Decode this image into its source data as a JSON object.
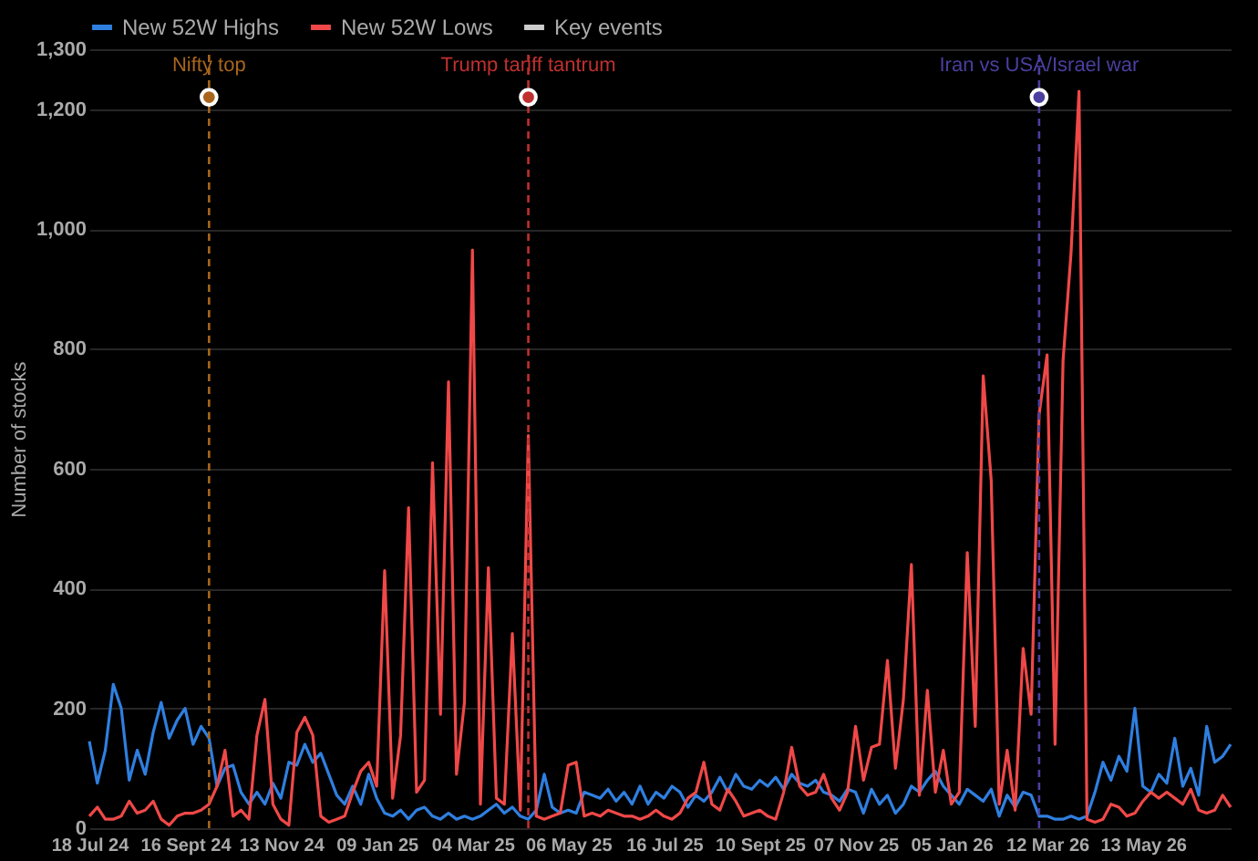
{
  "chart_data": {
    "type": "line",
    "ylabel": "Number of stocks",
    "categories": [
      "18 Jul 24",
      null,
      null,
      null,
      null,
      null,
      null,
      null,
      null,
      null,
      null,
      null,
      "16 Sept 24",
      null,
      null,
      null,
      null,
      null,
      null,
      null,
      null,
      null,
      null,
      null,
      "13 Nov 24",
      null,
      null,
      null,
      null,
      null,
      null,
      null,
      null,
      null,
      null,
      null,
      "09 Jan 25",
      null,
      null,
      null,
      null,
      null,
      null,
      null,
      null,
      null,
      null,
      null,
      "04 Mar 25",
      null,
      null,
      null,
      null,
      null,
      null,
      null,
      null,
      null,
      null,
      null,
      "06 May 25",
      null,
      null,
      null,
      null,
      null,
      null,
      null,
      null,
      null,
      null,
      null,
      "16 Jul 25",
      null,
      null,
      null,
      null,
      null,
      null,
      null,
      null,
      null,
      null,
      null,
      "10 Sept 25",
      null,
      null,
      null,
      null,
      null,
      null,
      null,
      null,
      null,
      null,
      null,
      "07 Nov 25",
      null,
      null,
      null,
      null,
      null,
      null,
      null,
      null,
      null,
      null,
      null,
      "05 Jan 26",
      null,
      null,
      null,
      null,
      null,
      null,
      null,
      null,
      null,
      null,
      null,
      "12 Mar 26",
      null,
      null,
      null,
      null,
      null,
      null,
      null,
      null,
      null,
      null,
      null,
      "13 May 26",
      null,
      null,
      null,
      null,
      null,
      null,
      null,
      null,
      null,
      null,
      null
    ],
    "series": [
      {
        "name": "New 52W Highs",
        "color": "#2f7fe0",
        "values": [
          145,
          75,
          130,
          240,
          200,
          80,
          130,
          90,
          160,
          210,
          150,
          180,
          200,
          140,
          170,
          150,
          70,
          100,
          105,
          60,
          40,
          60,
          40,
          75,
          50,
          110,
          105,
          140,
          110,
          125,
          90,
          55,
          40,
          70,
          40,
          90,
          50,
          25,
          20,
          30,
          15,
          30,
          35,
          20,
          15,
          25,
          15,
          20,
          15,
          20,
          30,
          40,
          25,
          35,
          20,
          15,
          30,
          90,
          35,
          25,
          30,
          25,
          60,
          55,
          50,
          65,
          45,
          60,
          40,
          70,
          40,
          60,
          50,
          70,
          60,
          35,
          55,
          45,
          60,
          85,
          60,
          90,
          70,
          65,
          80,
          70,
          85,
          65,
          90,
          75,
          70,
          80,
          60,
          55,
          45,
          65,
          60,
          25,
          65,
          40,
          55,
          25,
          40,
          70,
          60,
          80,
          95,
          70,
          55,
          40,
          65,
          55,
          45,
          65,
          20,
          55,
          35,
          60,
          55,
          20,
          20,
          15,
          15,
          20,
          15,
          20,
          60,
          110,
          80,
          120,
          95,
          200,
          70,
          60,
          90,
          75,
          150,
          70,
          100,
          55,
          170,
          110,
          120,
          140
        ]
      },
      {
        "name": "New 52W Lows",
        "color": "#f04848",
        "values": [
          20,
          35,
          15,
          15,
          20,
          45,
          25,
          30,
          45,
          15,
          5,
          20,
          25,
          25,
          30,
          40,
          70,
          130,
          20,
          30,
          15,
          155,
          215,
          40,
          15,
          5,
          160,
          185,
          155,
          20,
          10,
          15,
          20,
          60,
          95,
          110,
          70,
          430,
          50,
          155,
          535,
          60,
          80,
          610,
          190,
          745,
          90,
          210,
          965,
          40,
          435,
          50,
          40,
          325,
          30,
          655,
          20,
          15,
          20,
          25,
          105,
          110,
          20,
          25,
          20,
          30,
          25,
          20,
          20,
          15,
          20,
          30,
          20,
          15,
          25,
          50,
          60,
          110,
          40,
          30,
          65,
          45,
          20,
          25,
          30,
          20,
          15,
          60,
          135,
          70,
          55,
          60,
          90,
          50,
          30,
          60,
          170,
          80,
          135,
          140,
          280,
          100,
          215,
          440,
          55,
          230,
          60,
          130,
          40,
          60,
          460,
          170,
          755,
          580,
          40,
          130,
          30,
          300,
          190,
          690,
          790,
          140,
          780,
          960,
          1230,
          15,
          10,
          15,
          40,
          35,
          20,
          25,
          45,
          60,
          50,
          60,
          50,
          40,
          65,
          30,
          25,
          30,
          55,
          35
        ]
      },
      {
        "name": "Key events",
        "type": "scatter",
        "marker": "circle",
        "color": "#cccccc",
        "values": [
          null,
          null,
          null,
          null,
          null,
          null,
          null,
          null,
          null,
          null,
          null,
          null,
          null,
          null,
          null,
          1220,
          null,
          null,
          null,
          null,
          null,
          null,
          null,
          null,
          null,
          null,
          null,
          null,
          null,
          null,
          null,
          null,
          null,
          null,
          null,
          null,
          null,
          null,
          null,
          null,
          null,
          null,
          null,
          null,
          null,
          null,
          null,
          null,
          null,
          null,
          null,
          null,
          null,
          null,
          null,
          1220,
          null,
          null,
          null,
          null,
          null,
          null,
          null,
          null,
          null,
          null,
          null,
          null,
          null,
          null,
          null,
          null,
          null,
          null,
          null,
          null,
          null,
          null,
          null,
          null,
          null,
          null,
          null,
          null,
          null,
          null,
          null,
          null,
          null,
          null,
          null,
          null,
          null,
          null,
          null,
          null,
          null,
          null,
          null,
          null,
          null,
          null,
          null,
          null,
          null,
          null,
          null,
          null,
          null,
          null,
          null,
          null,
          null,
          null,
          null,
          null,
          null,
          null,
          null,
          1220,
          null,
          null,
          null,
          null,
          null,
          null,
          null,
          null,
          null,
          null,
          null,
          null,
          null,
          null,
          null,
          null,
          null,
          null,
          null,
          null,
          null,
          null,
          null,
          null
        ],
        "colors": [
          null,
          null,
          null,
          null,
          null,
          null,
          null,
          null,
          null,
          null,
          null,
          null,
          null,
          null,
          null,
          "#a8651c",
          null,
          null,
          null,
          null,
          null,
          null,
          null,
          null,
          null,
          null,
          null,
          null,
          null,
          null,
          null,
          null,
          null,
          null,
          null,
          null,
          null,
          null,
          null,
          null,
          null,
          null,
          null,
          null,
          null,
          null,
          null,
          null,
          null,
          null,
          null,
          null,
          null,
          null,
          null,
          "#c0302f",
          null,
          null,
          null,
          null,
          null,
          null,
          null,
          null,
          null,
          null,
          null,
          null,
          null,
          null,
          null,
          null,
          null,
          null,
          null,
          null,
          null,
          null,
          null,
          null,
          null,
          null,
          null,
          null,
          null,
          null,
          null,
          null,
          null,
          null,
          null,
          null,
          null,
          null,
          null,
          null,
          null,
          null,
          null,
          null,
          null,
          null,
          null,
          null,
          null,
          null,
          null,
          null,
          null,
          null,
          null,
          null,
          null,
          null,
          null,
          null,
          null,
          null,
          null,
          "#4b3fa0",
          null,
          null,
          null,
          null,
          null,
          null,
          null,
          null,
          null,
          null,
          null,
          null,
          null,
          null,
          null,
          null,
          null,
          null,
          null,
          null,
          null,
          null,
          null,
          null
        ],
        "value_labels": [
          null,
          null,
          null,
          null,
          null,
          null,
          null,
          null,
          null,
          null,
          null,
          null,
          null,
          null,
          null,
          "Nifty top",
          null,
          null,
          null,
          null,
          null,
          null,
          null,
          null,
          null,
          null,
          null,
          null,
          null,
          null,
          null,
          null,
          null,
          null,
          null,
          null,
          null,
          null,
          null,
          null,
          null,
          null,
          null,
          null,
          null,
          null,
          null,
          null,
          null,
          null,
          null,
          null,
          null,
          null,
          null,
          "Trump tariff tantrum",
          null,
          null,
          null,
          null,
          null,
          null,
          null,
          null,
          null,
          null,
          null,
          null,
          null,
          null,
          null,
          null,
          null,
          null,
          null,
          null,
          null,
          null,
          null,
          null,
          null,
          null,
          null,
          null,
          null,
          null,
          null,
          null,
          null,
          null,
          null,
          null,
          null,
          null,
          null,
          null,
          null,
          null,
          null,
          null,
          null,
          null,
          null,
          null,
          null,
          null,
          null,
          null,
          null,
          null,
          null,
          null,
          null,
          null,
          null,
          null,
          null,
          null,
          null,
          "Iran vs USA/Israel war",
          null,
          null,
          null,
          null,
          null,
          null,
          null,
          null,
          null,
          null,
          null,
          null,
          null,
          null,
          null,
          null,
          null,
          null,
          null,
          null,
          null,
          null,
          null,
          null
        ]
      }
    ],
    "ylim": [
      0,
      1300
    ],
    "yticks": [
      0,
      200,
      400,
      600,
      800,
      {
        "value": 1000,
        "label": "1,000"
      },
      {
        "value": 1200,
        "label": "1,200"
      },
      {
        "value": 1300,
        "label": "1,300"
      }
    ],
    "ref_lines": [
      {
        "axis": "x",
        "color": "#a8651c",
        "line_style": "dashed"
      },
      {
        "axis": "x",
        "color": "#c0302f",
        "line_style": "dashed"
      },
      {
        "axis": "x",
        "color": "#4b3fa0",
        "line_style": "dashed"
      }
    ],
    "grid": "y",
    "legend": "top left",
    "marker": "none",
    "line_style": "solid"
  }
}
